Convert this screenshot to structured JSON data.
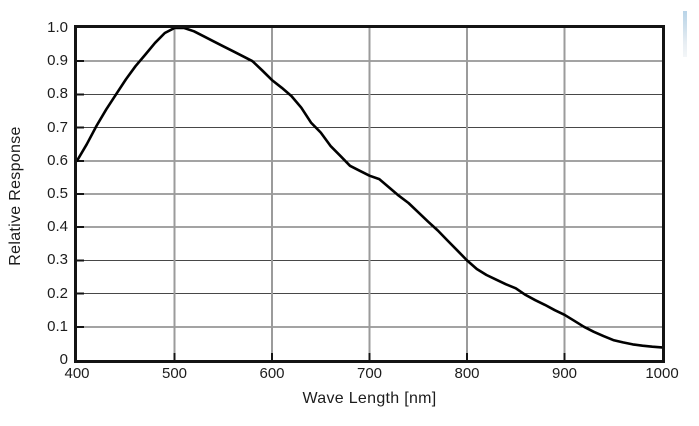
{
  "chart_data": {
    "type": "line",
    "title": "",
    "xlabel": "Wave Length [nm]",
    "ylabel": "Relative Response",
    "xlim": [
      400,
      1000
    ],
    "ylim": [
      0,
      1.0
    ],
    "grid": true,
    "legend": false,
    "x_ticks": [
      400,
      500,
      600,
      700,
      800,
      900,
      1000
    ],
    "x_tick_labels": [
      "400",
      "500",
      "600",
      "700",
      "800",
      "900",
      "1000"
    ],
    "y_ticks": [
      0,
      0.1,
      0.2,
      0.3,
      0.4,
      0.5,
      0.6,
      0.7,
      0.8,
      0.9,
      1.0
    ],
    "y_tick_labels": [
      "0",
      "0.1",
      "0.2",
      "0.3",
      "0.4",
      "0.5",
      "0.6",
      "0.7",
      "0.8",
      "0.9",
      "1.0"
    ],
    "x_gridlines": [
      500,
      600,
      700,
      800,
      900
    ],
    "y_gridlines": [
      0.1,
      0.2,
      0.3,
      0.4,
      0.5,
      0.6,
      0.7,
      0.8,
      0.9
    ],
    "series": [
      {
        "name": "relative-response-curve",
        "color": "#000000",
        "x": [
          400,
          410,
          420,
          430,
          440,
          450,
          460,
          470,
          480,
          490,
          500,
          510,
          520,
          530,
          540,
          550,
          560,
          570,
          580,
          590,
          600,
          610,
          620,
          630,
          640,
          650,
          660,
          670,
          680,
          690,
          700,
          710,
          720,
          730,
          740,
          750,
          760,
          770,
          780,
          790,
          800,
          810,
          820,
          830,
          840,
          850,
          860,
          870,
          880,
          890,
          900,
          910,
          920,
          930,
          940,
          950,
          960,
          970,
          980,
          990,
          1000
        ],
        "y": [
          0.6,
          0.65,
          0.705,
          0.755,
          0.8,
          0.845,
          0.885,
          0.92,
          0.955,
          0.985,
          1.0,
          1.0,
          0.99,
          0.975,
          0.96,
          0.945,
          0.93,
          0.915,
          0.9,
          0.872,
          0.843,
          0.82,
          0.795,
          0.76,
          0.715,
          0.685,
          0.645,
          0.615,
          0.585,
          0.57,
          0.555,
          0.545,
          0.52,
          0.495,
          0.473,
          0.445,
          0.417,
          0.39,
          0.36,
          0.33,
          0.3,
          0.274,
          0.256,
          0.242,
          0.228,
          0.216,
          0.196,
          0.18,
          0.166,
          0.15,
          0.136,
          0.118,
          0.1,
          0.085,
          0.072,
          0.06,
          0.053,
          0.047,
          0.043,
          0.04,
          0.038
        ]
      }
    ]
  },
  "colors": {
    "curve": "#000000",
    "plot_border": "#141414",
    "h_gridline": "#474747",
    "v_gridline": "#9b9b9b",
    "tick_mark": "#141414",
    "text": "#1c1c1c",
    "background": "#ffffff",
    "scrollbar_artifact": "#b9d4e8"
  }
}
